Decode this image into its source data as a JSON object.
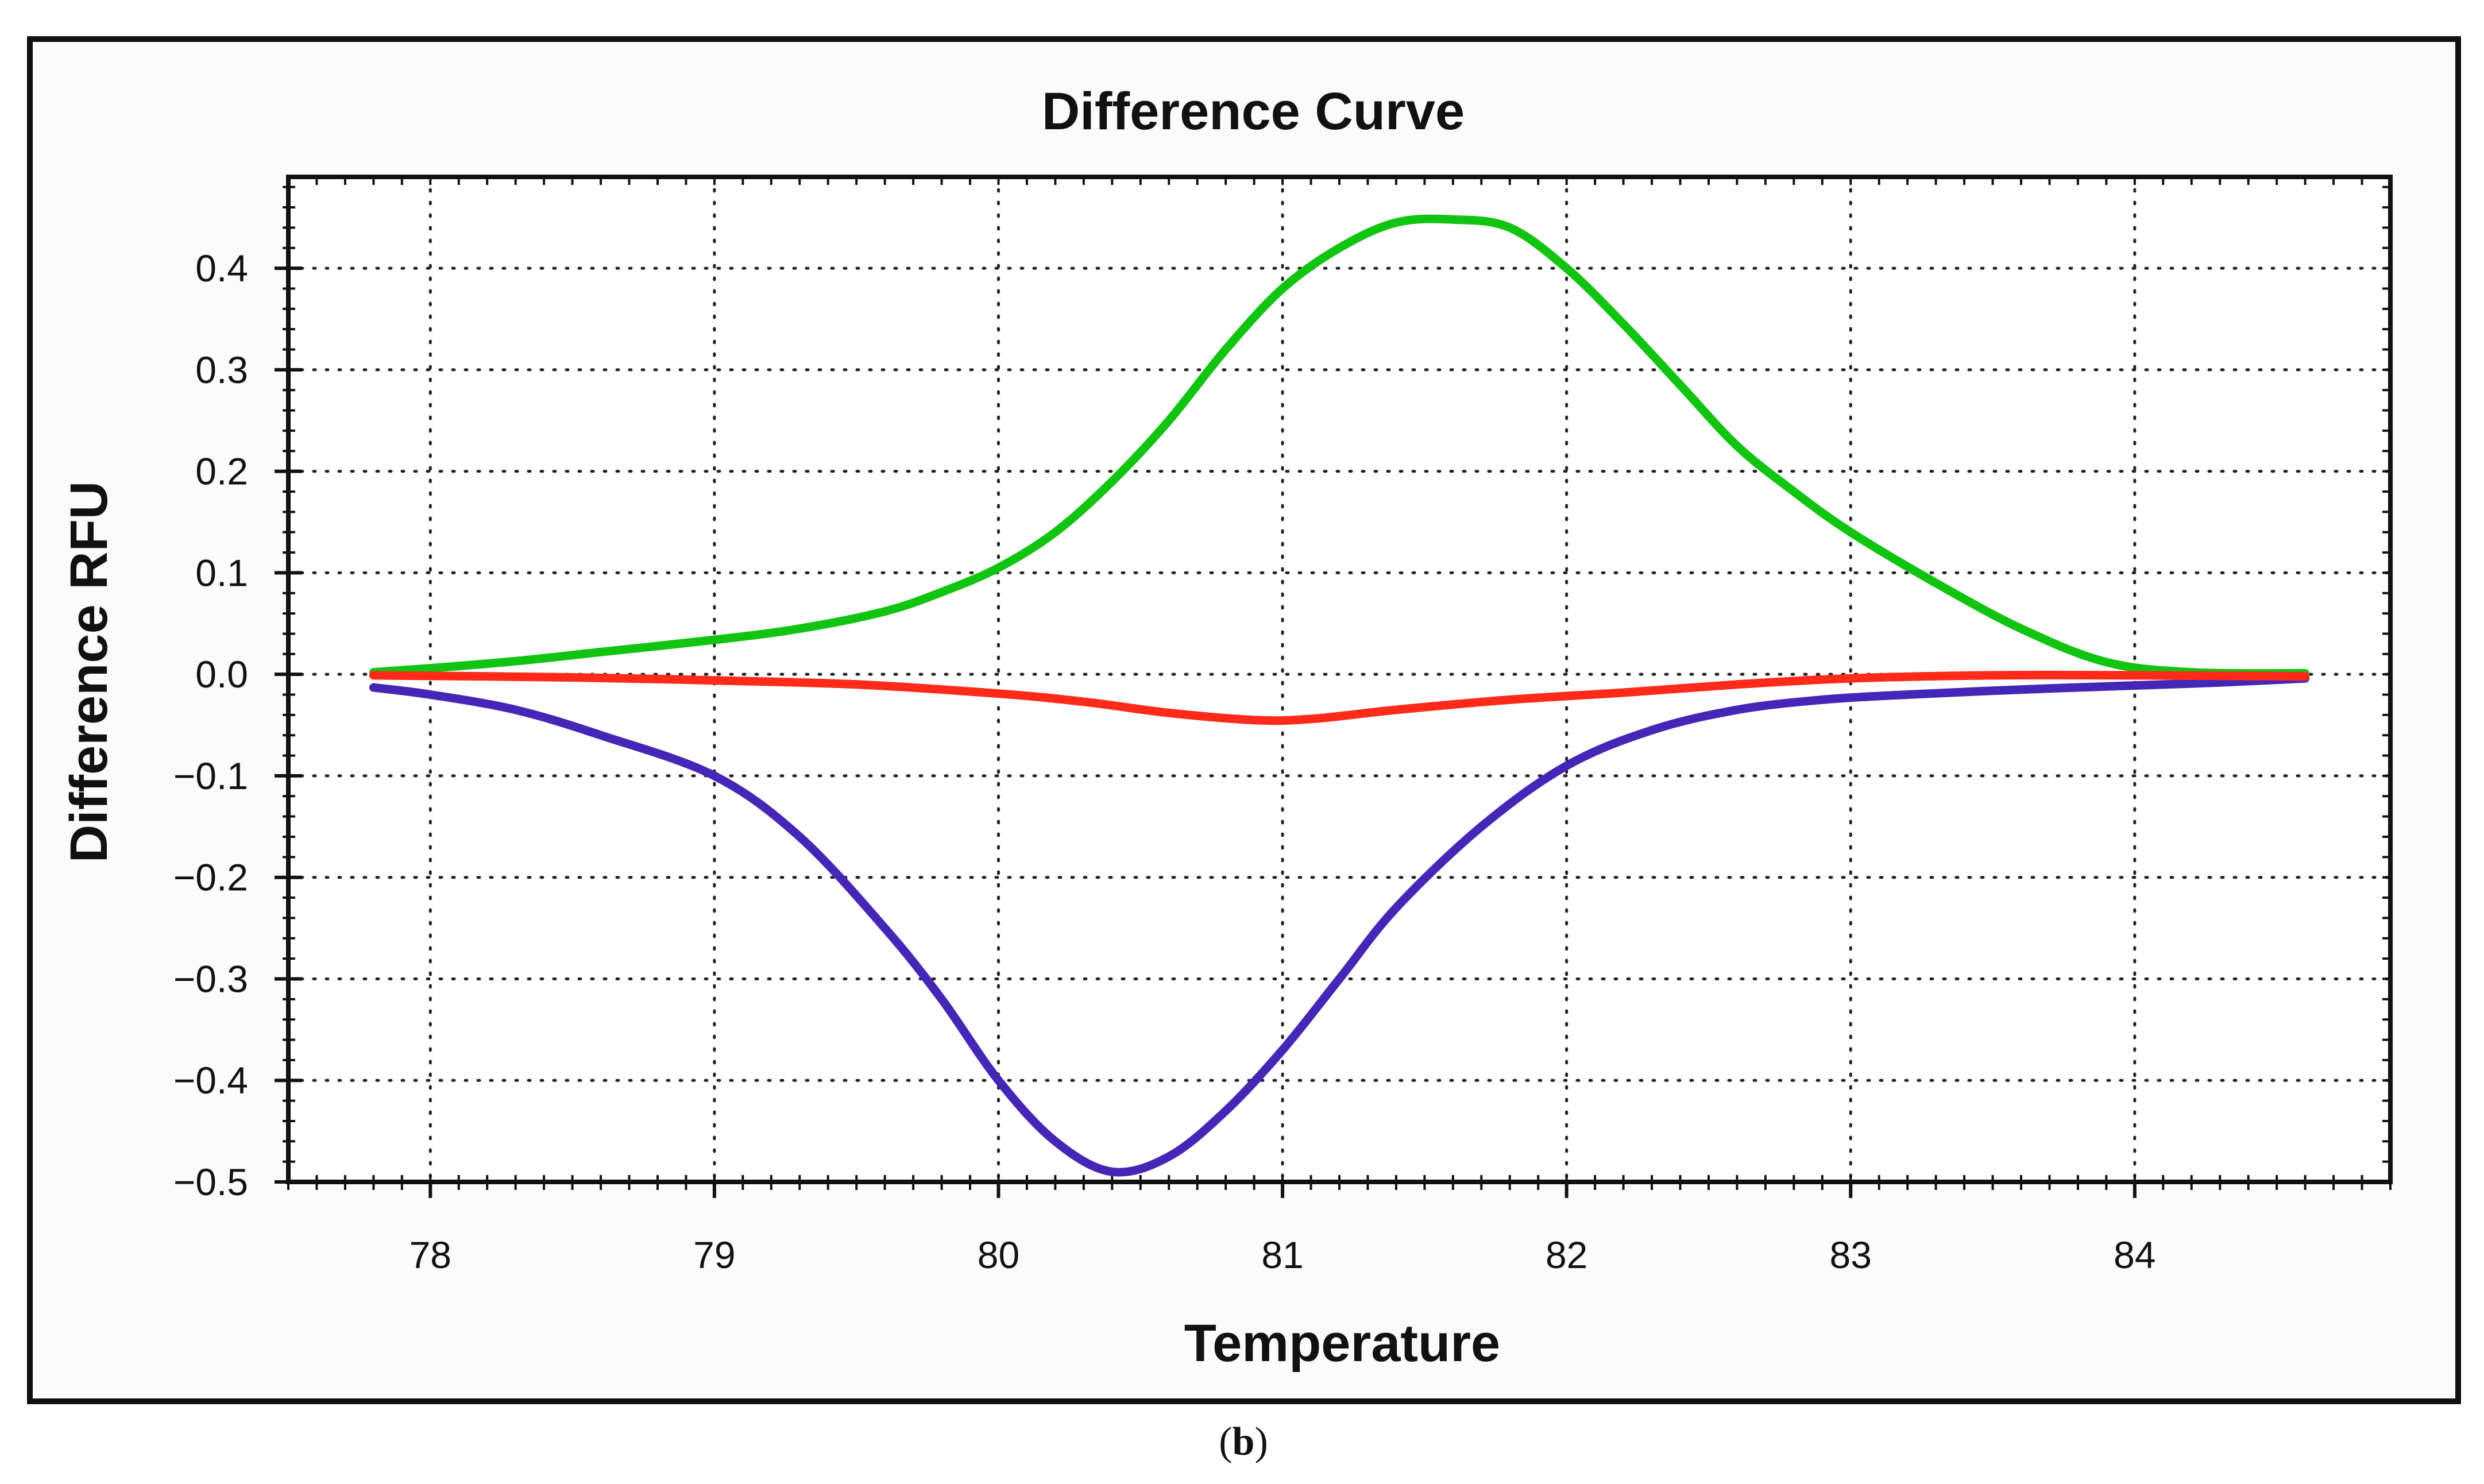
{
  "chart_data": {
    "type": "line",
    "title": "Difference Curve",
    "xlabel": "Temperature",
    "ylabel": "Difference RFU",
    "xlim": [
      77.5,
      84.9
    ],
    "ylim": [
      -0.5,
      0.49
    ],
    "xticks": [
      78,
      79,
      80,
      81,
      82,
      83,
      84
    ],
    "yticks": [
      0.4,
      0.3,
      0.2,
      0.1,
      0.0,
      -0.1,
      -0.2,
      -0.3,
      -0.4,
      -0.5
    ],
    "ytick_labels": [
      "0.4",
      "0.3",
      "0.2",
      "0.1",
      "0.0",
      "−0.1",
      "−0.2",
      "−0.3",
      "−0.4",
      "−0.5"
    ],
    "grid": true,
    "series": [
      {
        "name": "green",
        "color": "#12c412",
        "x": [
          77.8,
          78.0,
          78.3,
          78.6,
          79.0,
          79.3,
          79.6,
          79.8,
          80.0,
          80.2,
          80.4,
          80.6,
          80.8,
          81.0,
          81.2,
          81.4,
          81.6,
          81.8,
          82.0,
          82.2,
          82.4,
          82.6,
          82.8,
          83.0,
          83.3,
          83.6,
          83.9,
          84.2,
          84.6
        ],
        "y": [
          0.002,
          0.006,
          0.013,
          0.022,
          0.034,
          0.045,
          0.062,
          0.081,
          0.105,
          0.14,
          0.19,
          0.25,
          0.32,
          0.38,
          0.42,
          0.445,
          0.448,
          0.44,
          0.4,
          0.345,
          0.285,
          0.225,
          0.18,
          0.14,
          0.09,
          0.045,
          0.012,
          0.002,
          0.001
        ]
      },
      {
        "name": "red",
        "color": "#ff2a1a",
        "x": [
          77.8,
          78.5,
          79.0,
          79.5,
          80.0,
          80.3,
          80.6,
          80.9,
          81.1,
          81.4,
          81.8,
          82.2,
          82.6,
          83.0,
          83.5,
          84.0,
          84.6
        ],
        "y": [
          -0.001,
          -0.003,
          -0.006,
          -0.01,
          -0.019,
          -0.027,
          -0.038,
          -0.045,
          -0.044,
          -0.035,
          -0.025,
          -0.018,
          -0.01,
          -0.004,
          -0.001,
          -0.001,
          -0.002
        ]
      },
      {
        "name": "blue",
        "color": "#4527b8",
        "x": [
          77.8,
          78.0,
          78.3,
          78.6,
          79.0,
          79.3,
          79.6,
          79.8,
          80.0,
          80.2,
          80.4,
          80.6,
          80.8,
          81.0,
          81.2,
          81.4,
          81.7,
          82.0,
          82.3,
          82.6,
          82.9,
          83.2,
          83.6,
          84.0,
          84.3,
          84.6
        ],
        "y": [
          -0.013,
          -0.02,
          -0.035,
          -0.06,
          -0.1,
          -0.16,
          -0.25,
          -0.32,
          -0.4,
          -0.46,
          -0.49,
          -0.475,
          -0.43,
          -0.37,
          -0.3,
          -0.23,
          -0.15,
          -0.09,
          -0.055,
          -0.035,
          -0.025,
          -0.02,
          -0.015,
          -0.011,
          -0.008,
          -0.004
        ]
      }
    ]
  },
  "caption": {
    "open": "(",
    "label": "b",
    "close": ")"
  }
}
